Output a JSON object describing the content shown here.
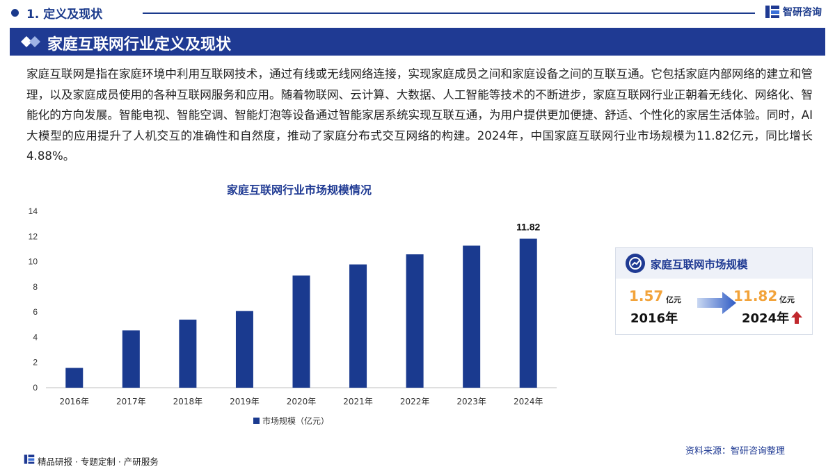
{
  "header": {
    "section_title": "1. 定义及现状",
    "brand": "智研咨询",
    "banner_title": "家庭互联网行业定义及现状"
  },
  "description": "家庭互联网是指在家庭环境中利用互联网技术，通过有线或无线网络连接，实现家庭成员之间和家庭设备之间的互联互通。它包括家庭内部网络的建立和管理，以及家庭成员使用的各种互联网服务和应用。随着物联网、云计算、大数据、人工智能等技术的不断进步，家庭互联网行业正朝着无线化、网络化、智能化的方向发展。智能电视、智能空调、智能灯泡等设备通过智能家居系统实现互联互通，为用户提供更加便捷、舒适、个性化的家居生活体验。同时，AI大模型的应用提升了人机交互的准确性和自然度，推动了家庭分布式交互网络的构建。2024年，中国家庭互联网行业市场规模为11.82亿元，同比增长4.88%。",
  "chart_data": {
    "type": "bar",
    "title": "家庭互联网行业市场规模情况",
    "categories": [
      "2016年",
      "2017年",
      "2018年",
      "2019年",
      "2020年",
      "2021年",
      "2022年",
      "2023年",
      "2024年"
    ],
    "series": [
      {
        "name": "市场规模（亿元）",
        "values": [
          1.57,
          4.55,
          5.4,
          6.08,
          8.9,
          9.78,
          10.58,
          11.27,
          11.82
        ],
        "color": "#1a3a8f"
      }
    ],
    "data_labels": [
      {
        "category": "2024年",
        "label": "11.82"
      }
    ],
    "ylim": [
      0,
      14
    ],
    "yticks": [
      0,
      2,
      4,
      6,
      8,
      10,
      12,
      14
    ],
    "grid": false,
    "legend": "bottom"
  },
  "card": {
    "title": "家庭互联网市场规模",
    "start_value": "1.57",
    "start_unit": "亿元",
    "start_year": "2016年",
    "end_value": "11.82",
    "end_unit": "亿元",
    "end_year": "2024年",
    "accent_color": "#f2a33a",
    "trend_icon": "up-arrow-icon",
    "trend_color": "#c0282d"
  },
  "footer": {
    "source": "资料来源：智研咨询整理",
    "tagline": "精品研报 · 专题定制 · 产研服务"
  }
}
